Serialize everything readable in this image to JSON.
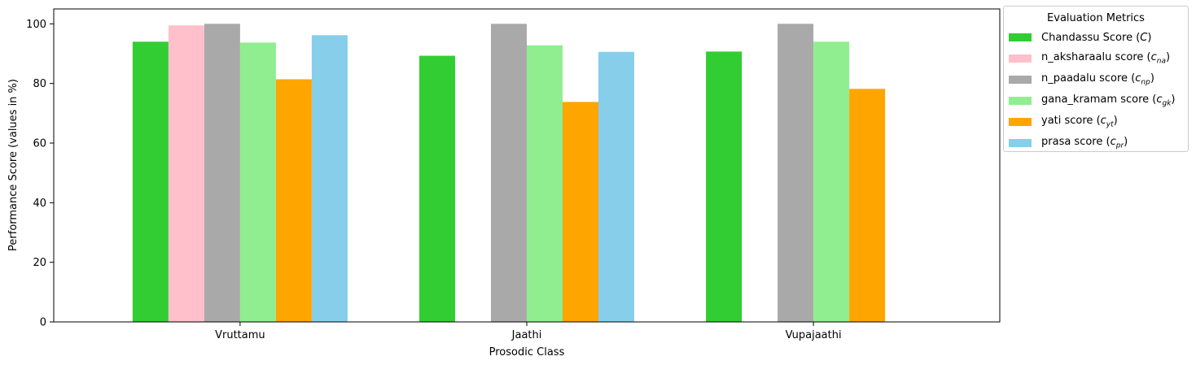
{
  "chart_data": {
    "type": "bar",
    "title": "",
    "xlabel": "Prosodic Class",
    "ylabel": "Performance Score (values in %)",
    "categories": [
      "Vruttamu",
      "Jaathi",
      "Vupajaathi"
    ],
    "ylim": [
      0,
      105
    ],
    "yticks": [
      "0",
      "20",
      "40",
      "60",
      "80",
      "100"
    ],
    "grid": false,
    "legend_title": "Evaluation Metrics",
    "legend_placement": "outside-right-top",
    "series": [
      {
        "name": "Chandassu Score (C)",
        "name_main": "Chandassu Score (",
        "name_var": "C",
        "name_sub": "",
        "name_end": ")",
        "color": "#32CD32",
        "values": [
          94,
          89.3,
          90.7
        ]
      },
      {
        "name": "n_aksharaalu score (c_na)",
        "name_main": "n_aksharaalu score (",
        "name_var": "c",
        "name_sub": "na",
        "name_end": ")",
        "color": "#FFC0CB",
        "values": [
          99.5,
          null,
          null
        ]
      },
      {
        "name": "n_paadalu score (c_np)",
        "name_main": "n_paadalu score (",
        "name_var": "c",
        "name_sub": "np",
        "name_end": ")",
        "color": "#A9A9A9",
        "values": [
          100,
          100,
          100
        ]
      },
      {
        "name": "gana_kramam score (c_gk)",
        "name_main": "gana_kramam score (",
        "name_var": "c",
        "name_sub": "gk",
        "name_end": ")",
        "color": "#90EE90",
        "values": [
          93.7,
          92.8,
          94
        ]
      },
      {
        "name": "yati score (c_yt)",
        "name_main": "yati score (",
        "name_var": "c",
        "name_sub": "yt",
        "name_end": ")",
        "color": "#FFA500",
        "values": [
          81.4,
          73.8,
          78.2
        ]
      },
      {
        "name": "prasa score (c_pr)",
        "name_main": "prasa score (",
        "name_var": "c",
        "name_sub": "pr",
        "name_end": ")",
        "color": "#87CEEB",
        "values": [
          96.2,
          90.6,
          null
        ]
      }
    ]
  }
}
